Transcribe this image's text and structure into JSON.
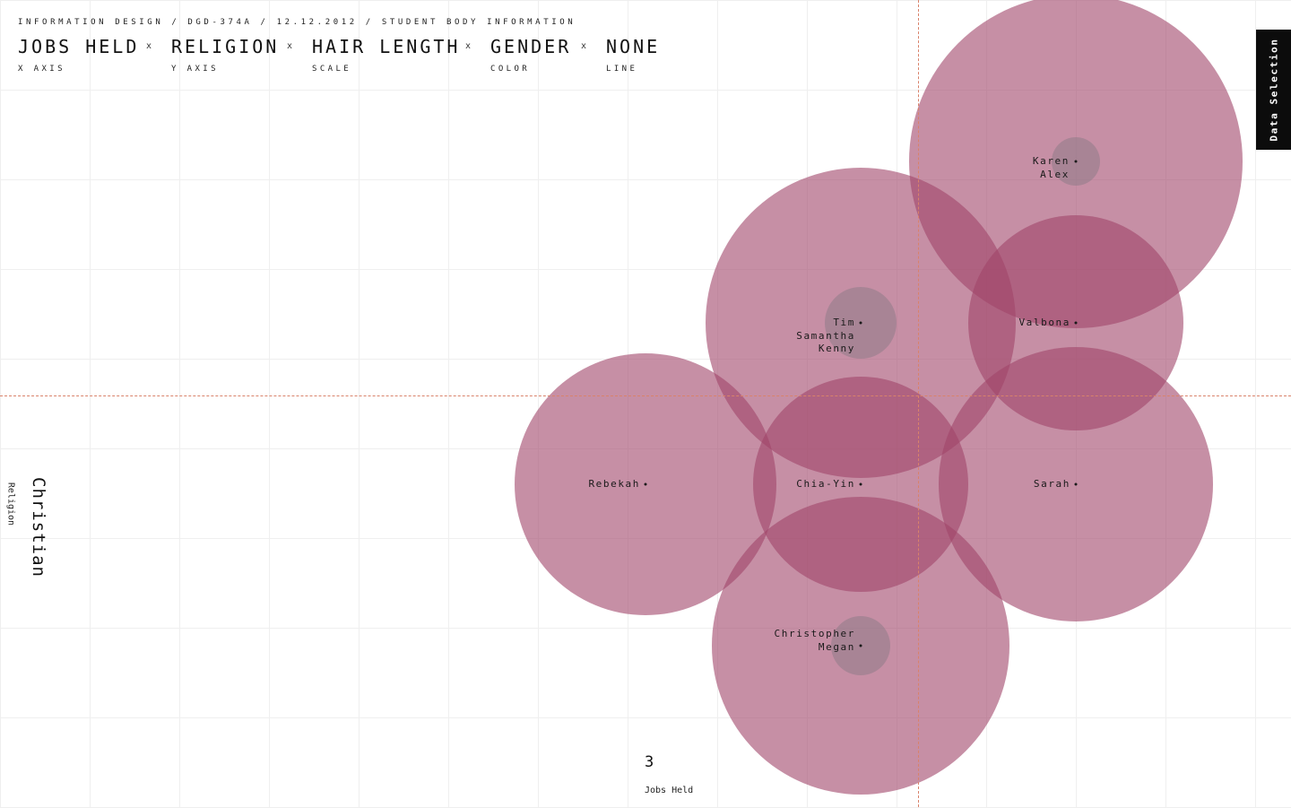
{
  "header": {
    "breadcrumb": "INFORMATION DESIGN / DGD-374A / 12.12.2012 / STUDENT BODY INFORMATION",
    "separator": "x",
    "variables": [
      {
        "value": "JOBS HELD",
        "role": "X AXIS"
      },
      {
        "value": "RELIGION",
        "role": "Y AXIS"
      },
      {
        "value": "HAIR LENGTH",
        "role": "SCALE"
      },
      {
        "value": "GENDER",
        "role": "COLOR"
      },
      {
        "value": "NONE",
        "role": "LINE"
      }
    ]
  },
  "side_tab": {
    "label": "Data Selection"
  },
  "axis_readout": {
    "y_value": "Christian",
    "y_label": "Religion",
    "x_value": "3",
    "x_label": "Jobs Held"
  },
  "bubbles": [
    {
      "names": [
        "Karen",
        "Alex"
      ]
    },
    {
      "names": [
        "Tim",
        "Samantha",
        "Kenny"
      ]
    },
    {
      "names": [
        "Valbona"
      ]
    },
    {
      "names": [
        "Rebekah"
      ]
    },
    {
      "names": [
        "Chia-Yin"
      ]
    },
    {
      "names": [
        "Sarah"
      ]
    },
    {
      "names": [
        "Christopher",
        "Megan"
      ]
    }
  ],
  "colors": {
    "bubble": "#a04469",
    "inner_circle": "#827882",
    "crosshair": "#d9826a",
    "side_tab_bg": "#0c0c0c"
  }
}
